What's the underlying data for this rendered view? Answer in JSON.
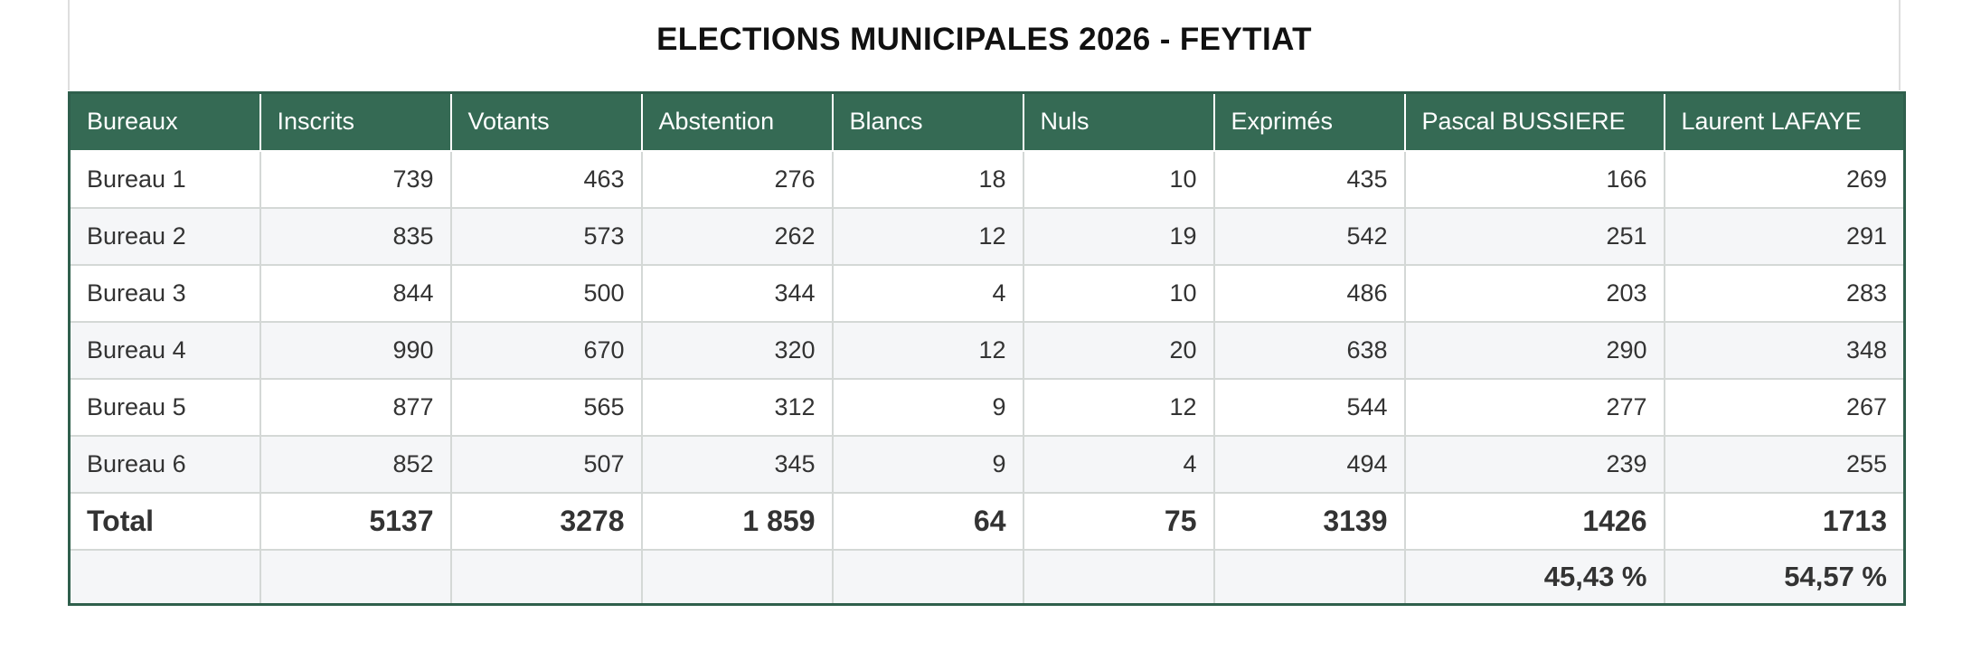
{
  "title": "ELECTIONS MUNICIPALES 2026 - FEYTIAT",
  "columns": [
    "Bureaux",
    "Inscrits",
    "Votants",
    "Abstention",
    "Blancs",
    "Nuls",
    "Exprimés",
    "Pascal BUSSIERE",
    "Laurent LAFAYE"
  ],
  "rows": [
    [
      "Bureau 1",
      "739",
      "463",
      "276",
      "18",
      "10",
      "435",
      "166",
      "269"
    ],
    [
      "Bureau 2",
      "835",
      "573",
      "262",
      "12",
      "19",
      "542",
      "251",
      "291"
    ],
    [
      "Bureau 3",
      "844",
      "500",
      "344",
      "4",
      "10",
      "486",
      "203",
      "283"
    ],
    [
      "Bureau 4",
      "990",
      "670",
      "320",
      "12",
      "20",
      "638",
      "290",
      "348"
    ],
    [
      "Bureau 5",
      "877",
      "565",
      "312",
      "9",
      "12",
      "544",
      "277",
      "267"
    ],
    [
      "Bureau 6",
      "852",
      "507",
      "345",
      "9",
      "4",
      "494",
      "239",
      "255"
    ]
  ],
  "total": [
    "Total",
    "5137",
    "3278",
    "1 859",
    "64",
    "75",
    "3139",
    "1426",
    "1713"
  ],
  "percentages": [
    "",
    "",
    "",
    "",
    "",
    "",
    "",
    "45,43 %",
    "54,57 %"
  ],
  "colors": {
    "header_bg": "#356a54",
    "border": "#2f5f4c",
    "row_alt": "#f5f6f8"
  }
}
